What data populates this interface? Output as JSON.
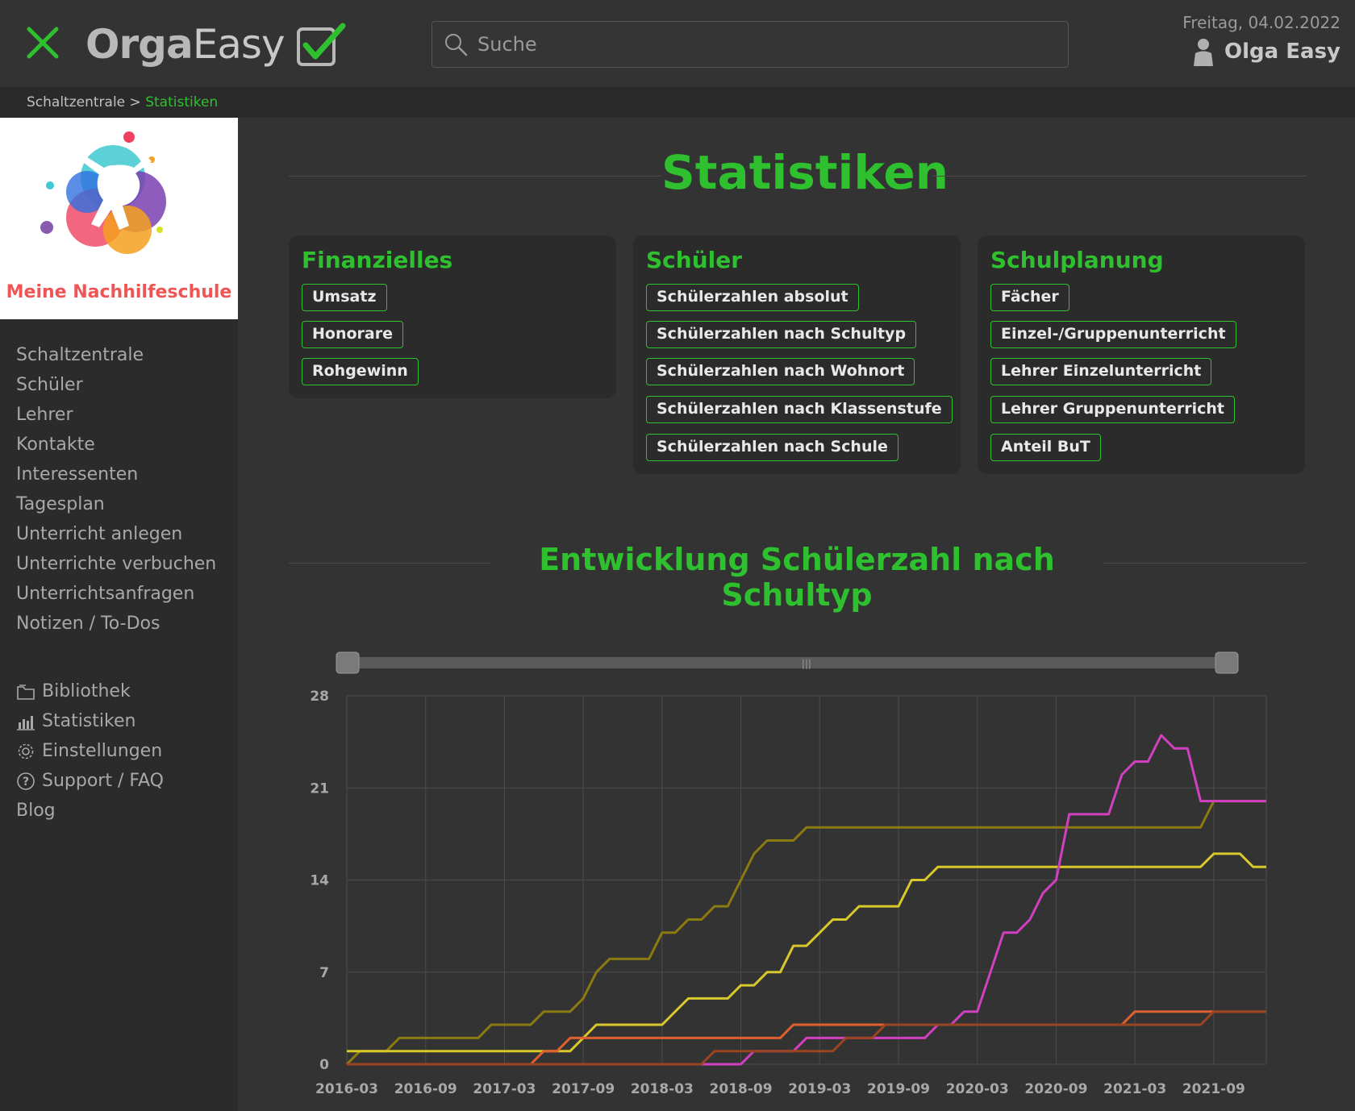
{
  "header": {
    "logo_orga": "Orga",
    "logo_easy": "Easy",
    "search_placeholder": "Suche",
    "date": "Freitag, 04.02.2022",
    "user_name": "Olga Easy"
  },
  "breadcrumb": {
    "root": "Schaltzentrale",
    "separator": " > ",
    "current": "Statistiken"
  },
  "school": {
    "name": "Meine Nachhilfeschule"
  },
  "sidebar": {
    "items": [
      {
        "label": "Schaltzentrale"
      },
      {
        "label": "Schüler"
      },
      {
        "label": "Lehrer"
      },
      {
        "label": "Kontakte"
      },
      {
        "label": "Interessenten"
      },
      {
        "label": "Tagesplan"
      },
      {
        "label": "Unterricht anlegen"
      },
      {
        "label": "Unterrichte verbuchen"
      },
      {
        "label": "Unterrichtsanfragen"
      },
      {
        "label": "Notizen / To-Dos"
      }
    ],
    "secondary": [
      {
        "label": "Bibliothek",
        "icon": "folder-icon"
      },
      {
        "label": "Statistiken",
        "icon": "bar-chart-icon"
      },
      {
        "label": "Einstellungen",
        "icon": "gear-icon"
      },
      {
        "label": "Support / FAQ",
        "icon": "help-icon"
      },
      {
        "label": "Blog",
        "icon": ""
      }
    ]
  },
  "page": {
    "title": "Statistiken",
    "cards": [
      {
        "title": "Finanzielles",
        "buttons": [
          "Umsatz",
          "Honorare",
          "Rohgewinn"
        ]
      },
      {
        "title": "Schüler",
        "buttons": [
          "Schülerzahlen absolut",
          "Schülerzahlen nach Schultyp",
          "Schülerzahlen nach Wohnort",
          "Schülerzahlen nach Klassenstufe",
          "Schülerzahlen nach Schule"
        ]
      },
      {
        "title": "Schulplanung",
        "buttons": [
          "Fächer",
          "Einzel-/Gruppenunterricht",
          "Lehrer Einzelunterricht",
          "Lehrer Gruppenunterricht",
          "Anteil BuT"
        ]
      }
    ],
    "chart_title": "Entwicklung Schülerzahl nach Schultyp"
  },
  "colors": {
    "accent": "#2ec02e",
    "series": [
      "#8a7a10",
      "#d8c82a",
      "#e06030",
      "#d040c0",
      "#9a4420"
    ]
  },
  "chart_data": {
    "type": "line",
    "title": "Entwicklung Schülerzahl nach Schultyp",
    "xlabel": "",
    "ylabel": "",
    "x_start": "2016-03",
    "x_ticks": [
      "2016-03",
      "2016-09",
      "2017-03",
      "2017-09",
      "2018-03",
      "2018-09",
      "2019-03",
      "2019-09",
      "2020-03",
      "2020-09",
      "2021-03",
      "2021-09"
    ],
    "y_ticks": [
      0,
      7,
      14,
      21,
      28
    ],
    "ylim": [
      0,
      28
    ],
    "grid": true,
    "range_slider": true,
    "x": [
      "2016-03",
      "2016-04",
      "2016-05",
      "2016-06",
      "2016-07",
      "2016-08",
      "2016-09",
      "2016-10",
      "2016-11",
      "2016-12",
      "2017-01",
      "2017-02",
      "2017-03",
      "2017-04",
      "2017-05",
      "2017-06",
      "2017-07",
      "2017-08",
      "2017-09",
      "2017-10",
      "2017-11",
      "2017-12",
      "2018-01",
      "2018-02",
      "2018-03",
      "2018-04",
      "2018-05",
      "2018-06",
      "2018-07",
      "2018-08",
      "2018-09",
      "2018-10",
      "2018-11",
      "2018-12",
      "2019-01",
      "2019-02",
      "2019-03",
      "2019-04",
      "2019-05",
      "2019-06",
      "2019-07",
      "2019-08",
      "2019-09",
      "2019-10",
      "2019-11",
      "2019-12",
      "2020-01",
      "2020-02",
      "2020-03",
      "2020-04",
      "2020-05",
      "2020-06",
      "2020-07",
      "2020-08",
      "2020-09",
      "2020-10",
      "2020-11",
      "2020-12",
      "2021-01",
      "2021-02",
      "2021-03",
      "2021-04",
      "2021-05",
      "2021-06",
      "2021-07",
      "2021-08",
      "2021-09",
      "2021-10",
      "2021-11",
      "2021-12",
      "2022-01"
    ],
    "series": [
      {
        "color": "#8a7a10",
        "values": [
          0,
          1,
          1,
          1,
          2,
          2,
          2,
          2,
          2,
          2,
          2,
          3,
          3,
          3,
          3,
          4,
          4,
          4,
          5,
          7,
          8,
          8,
          8,
          8,
          10,
          10,
          11,
          11,
          12,
          12,
          14,
          16,
          17,
          17,
          17,
          18,
          18,
          18,
          18,
          18,
          18,
          18,
          18,
          18,
          18,
          18,
          18,
          18,
          18,
          18,
          18,
          18,
          18,
          18,
          18,
          18,
          18,
          18,
          18,
          18,
          18,
          18,
          18,
          18,
          18,
          18,
          20,
          20,
          20,
          20,
          20
        ]
      },
      {
        "color": "#d8c82a",
        "values": [
          1,
          1,
          1,
          1,
          1,
          1,
          1,
          1,
          1,
          1,
          1,
          1,
          1,
          1,
          1,
          1,
          1,
          1,
          2,
          3,
          3,
          3,
          3,
          3,
          3,
          4,
          5,
          5,
          5,
          5,
          6,
          6,
          7,
          7,
          9,
          9,
          10,
          11,
          11,
          12,
          12,
          12,
          12,
          14,
          14,
          15,
          15,
          15,
          15,
          15,
          15,
          15,
          15,
          15,
          15,
          15,
          15,
          15,
          15,
          15,
          15,
          15,
          15,
          15,
          15,
          15,
          16,
          16,
          16,
          15,
          15
        ]
      },
      {
        "color": "#e06030",
        "values": [
          0,
          0,
          0,
          0,
          0,
          0,
          0,
          0,
          0,
          0,
          0,
          0,
          0,
          0,
          0,
          1,
          1,
          2,
          2,
          2,
          2,
          2,
          2,
          2,
          2,
          2,
          2,
          2,
          2,
          2,
          2,
          2,
          2,
          2,
          3,
          3,
          3,
          3,
          3,
          3,
          3,
          3,
          3,
          3,
          3,
          3,
          3,
          3,
          3,
          3,
          3,
          3,
          3,
          3,
          3,
          3,
          3,
          3,
          3,
          3,
          4,
          4,
          4,
          4,
          4,
          4,
          4,
          4,
          4,
          4,
          4
        ]
      },
      {
        "color": "#d040c0",
        "values": [
          0,
          0,
          0,
          0,
          0,
          0,
          0,
          0,
          0,
          0,
          0,
          0,
          0,
          0,
          0,
          0,
          0,
          0,
          0,
          0,
          0,
          0,
          0,
          0,
          0,
          0,
          0,
          0,
          0,
          0,
          0,
          1,
          1,
          1,
          1,
          2,
          2,
          2,
          2,
          2,
          2,
          2,
          2,
          2,
          2,
          3,
          3,
          4,
          4,
          7,
          10,
          10,
          11,
          13,
          14,
          19,
          19,
          19,
          19,
          22,
          23,
          23,
          25,
          24,
          24,
          20,
          20,
          20,
          20,
          20,
          20
        ]
      },
      {
        "color": "#9a4420",
        "values": [
          0,
          0,
          0,
          0,
          0,
          0,
          0,
          0,
          0,
          0,
          0,
          0,
          0,
          0,
          0,
          0,
          0,
          0,
          0,
          0,
          0,
          0,
          0,
          0,
          0,
          0,
          0,
          0,
          1,
          1,
          1,
          1,
          1,
          1,
          1,
          1,
          1,
          1,
          2,
          2,
          2,
          3,
          3,
          3,
          3,
          3,
          3,
          3,
          3,
          3,
          3,
          3,
          3,
          3,
          3,
          3,
          3,
          3,
          3,
          3,
          3,
          3,
          3,
          3,
          3,
          3,
          4,
          4,
          4,
          4,
          4
        ]
      }
    ]
  }
}
